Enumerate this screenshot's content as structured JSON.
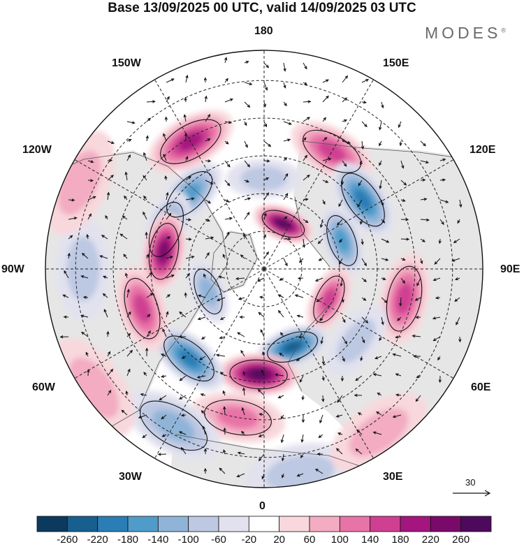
{
  "title": "Base 13/09/2025 00 UTC, valid 14/09/2025 03 UTC",
  "brand": "MODES",
  "brand_mark": "®",
  "longitude_labels": {
    "lon_180": "180",
    "lon_150e": "150E",
    "lon_120e": "120E",
    "lon_90e": "90E",
    "lon_60e": "60E",
    "lon_30e": "30E",
    "lon_0": "0",
    "lon_30w": "30W",
    "lon_60w": "60W",
    "lon_90w": "90W",
    "lon_120w": "120W",
    "lon_150w": "150W"
  },
  "colorbar": {
    "ticks": [
      "-260",
      "-220",
      "-180",
      "-140",
      "-100",
      "-60",
      "-20",
      "20",
      "60",
      "100",
      "140",
      "180",
      "220",
      "260"
    ],
    "colors": [
      "#0b3a5e",
      "#175f8e",
      "#2a7db5",
      "#4f9ccb",
      "#8fb4d8",
      "#bdc8e2",
      "#e2e2ef",
      "#ffffff",
      "#f8d8dc",
      "#f3acc2",
      "#e873a6",
      "#cf3f92",
      "#a4157e",
      "#7a0a6a",
      "#4d0a5c"
    ]
  },
  "wind_reference": {
    "value": "30"
  },
  "anomaly_features": [
    {
      "sign": "neg",
      "level": 4,
      "lon": -135,
      "colat": 28
    },
    {
      "sign": "neg",
      "level": 4,
      "lon": -112,
      "colat": 28
    },
    {
      "sign": "pos",
      "level": 5,
      "lon": -150,
      "colat": 39
    },
    {
      "sign": "pos",
      "level": 6,
      "lon": -100,
      "colat": 27
    },
    {
      "sign": "neg",
      "level": 2,
      "lon": 180,
      "colat": 24
    },
    {
      "sign": "pos",
      "level": 7,
      "lon": 157,
      "colat": 13
    },
    {
      "sign": "pos",
      "level": 4,
      "lon": 150,
      "colat": 36
    },
    {
      "sign": "neg",
      "level": 5,
      "lon": 125,
      "colat": 32
    },
    {
      "sign": "neg",
      "level": 4,
      "lon": 110,
      "colat": 22
    },
    {
      "sign": "pos",
      "level": 4,
      "lon": 78,
      "colat": 38
    },
    {
      "sign": "pos",
      "level": 4,
      "lon": 65,
      "colat": 19
    },
    {
      "sign": "neg",
      "level": 2,
      "lon": 52,
      "colat": 31
    },
    {
      "sign": "neg",
      "level": 6,
      "lon": 20,
      "colat": 22
    },
    {
      "sign": "pos",
      "level": 7,
      "lon": -3,
      "colat": 28
    },
    {
      "sign": "pos",
      "level": 3,
      "lon": -10,
      "colat": 40
    },
    {
      "sign": "neg",
      "level": 5,
      "lon": -40,
      "colat": 31
    },
    {
      "sign": "neg",
      "level": 3,
      "lon": -30,
      "colat": 48
    },
    {
      "sign": "pos",
      "level": 4,
      "lon": -72,
      "colat": 34
    },
    {
      "sign": "neg",
      "level": 3,
      "lon": -68,
      "colat": 16
    },
    {
      "sign": "neg",
      "level": 2,
      "lon": -90,
      "colat": 48
    },
    {
      "sign": "pos",
      "level": 2,
      "lon": -115,
      "colat": 54
    },
    {
      "sign": "pos",
      "level": 2,
      "lon": -55,
      "colat": 55
    },
    {
      "sign": "neg",
      "level": 2,
      "lon": 10,
      "colat": 55
    },
    {
      "sign": "pos",
      "level": 2,
      "lon": 35,
      "colat": 53
    }
  ]
}
